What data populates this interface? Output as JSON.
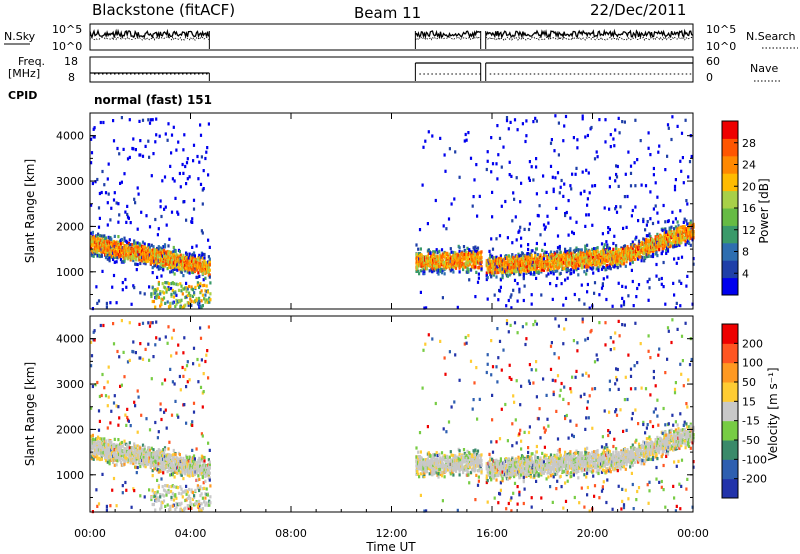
{
  "header": {
    "station": "Blackstone (fitACF)",
    "beam": "Beam 11",
    "date": "22/Dec/2011"
  },
  "top_panels": {
    "nsky_label": "N.Sky",
    "nsearch_label": "N.Search",
    "nsky_ticks": [
      "10^5",
      "10^0"
    ],
    "nsearch_ticks": [
      "10^5",
      "10^0"
    ],
    "freq_label_1": "Freq.",
    "freq_label_2": "[MHz]",
    "freq_ticks": [
      "18",
      "8"
    ],
    "nave_label": "Nave",
    "nave_ticks": [
      "60",
      "0"
    ],
    "cpid_label": "CPID",
    "cpid_value": "normal (fast) 151"
  },
  "chart_data": [
    {
      "type": "heatmap",
      "name": "power",
      "ylabel": "Slant Range [km]",
      "yticks": [
        "4000",
        "3000",
        "2000",
        "1000"
      ],
      "ytick_values": [
        4000,
        3000,
        2000,
        1000
      ],
      "ylim": [
        180,
        4500
      ],
      "xlim_hours": [
        0,
        24
      ],
      "colorbar_label": "Power [dB]",
      "colorbar_ticks": [
        "28",
        "24",
        "20",
        "16",
        "12",
        "8",
        "4"
      ],
      "colorbar_colors": [
        "#0000ee",
        "#1f3fa8",
        "#2e6eb0",
        "#3a9a6a",
        "#66bb44",
        "#a8d048",
        "#ffbb00",
        "#ff8800",
        "#ff5500",
        "#ee0000"
      ],
      "data_windows_hours": [
        [
          0,
          4.75
        ],
        [
          12.95,
          15.55
        ],
        [
          15.75,
          24
        ]
      ]
    },
    {
      "type": "heatmap",
      "name": "velocity",
      "ylabel": "Slant Range [km]",
      "yticks": [
        "4000",
        "3000",
        "2000",
        "1000"
      ],
      "ytick_values": [
        4000,
        3000,
        2000,
        1000
      ],
      "ylim": [
        180,
        4500
      ],
      "xlim_hours": [
        0,
        24
      ],
      "colorbar_label": "Velocity [m s⁻¹]",
      "colorbar_ticks": [
        "200",
        "100",
        "50",
        "15",
        "-15",
        "-50",
        "-100",
        "-200"
      ],
      "colorbar_colors": [
        "#2233aa",
        "#2e5fb0",
        "#3a8a6a",
        "#77cc44",
        "#c8c8c8",
        "#ffcc33",
        "#ff9922",
        "#ff5522",
        "#ee0000"
      ],
      "data_windows_hours": [
        [
          0,
          4.75
        ],
        [
          12.95,
          15.55
        ],
        [
          15.75,
          24
        ]
      ]
    }
  ],
  "xaxis": {
    "ticks": [
      "00:00",
      "04:00",
      "08:00",
      "12:00",
      "16:00",
      "20:00",
      "00:00"
    ],
    "tick_hours": [
      0,
      4,
      8,
      12,
      16,
      20,
      24
    ],
    "label": "Time UT"
  }
}
